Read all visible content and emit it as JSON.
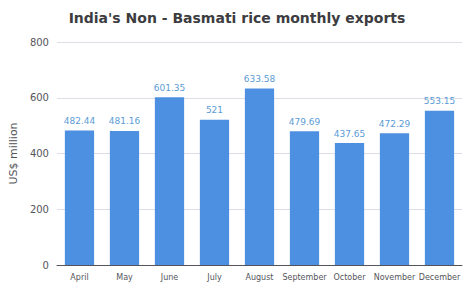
{
  "chart_data": {
    "type": "bar",
    "title": "India's Non - Basmati rice monthly exports",
    "categories": [
      "April",
      "May",
      "June",
      "July",
      "August",
      "September",
      "October",
      "November",
      "December"
    ],
    "values": [
      482.44,
      481.16,
      601.35,
      521,
      633.58,
      479.69,
      437.65,
      472.29,
      553.15
    ],
    "color": "#4d8fe0",
    "ylabel": "US$ million",
    "ylim": [
      0,
      800
    ],
    "yticks": [
      0,
      200,
      400,
      600,
      800
    ],
    "grid": true,
    "data_labels": true
  }
}
